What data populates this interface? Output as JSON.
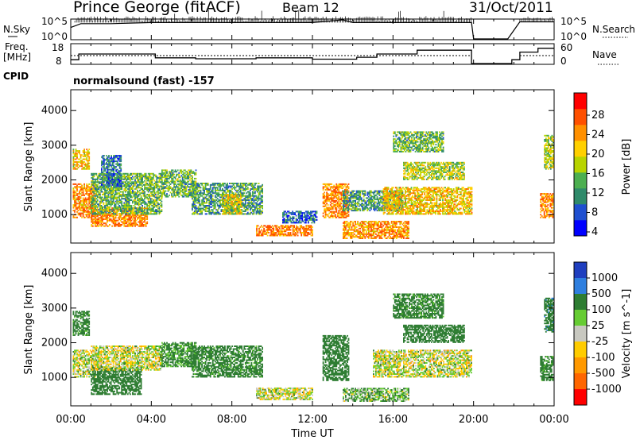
{
  "header": {
    "title": "Prince George (fitACF)",
    "beam": "Beam 12",
    "date": "31/Oct/2011"
  },
  "top_panels": {
    "nsky_label": "N.Sky",
    "nsearch_label": "N.Search",
    "freq_label_line1": "Freq.",
    "freq_label_line2": "[MHz]",
    "nave_label": "Nave",
    "cpid_label": "CPID",
    "cpid_value": "normalsound (fast) -157",
    "nsky_ticks": [
      "10^5",
      "10^0"
    ],
    "nsearch_ticks": [
      "10^5",
      "10^0"
    ],
    "freq_ticks": [
      "18",
      "8"
    ],
    "nave_ticks": [
      "60",
      "0"
    ]
  },
  "power_scale": {
    "title": "Power [dB]",
    "ticks": [
      "28",
      "24",
      "20",
      "16",
      "12",
      "8",
      "4"
    ],
    "colors": [
      "#0000ff",
      "#1f4fd0",
      "#2f8a6a",
      "#4caf50",
      "#b8d400",
      "#ffd000",
      "#ff9000",
      "#ff5000",
      "#ff0000"
    ]
  },
  "velocity_scale": {
    "title": "Velocity [m s^-1]",
    "ticks": [
      "1000",
      "500",
      "100",
      "25",
      "-25",
      "-100",
      "-500",
      "-1000"
    ],
    "colors": [
      "#1f3fbf",
      "#2f7fdf",
      "#2e7d32",
      "#66cc33",
      "#c8c8c0",
      "#ffcc00",
      "#ff9900",
      "#ff6600",
      "#ff0000"
    ]
  },
  "chart_data": [
    {
      "type": "line",
      "title": "",
      "series": [
        {
          "name": "N.Sky",
          "x": [
            0,
            0.5,
            2,
            4,
            6,
            8,
            10,
            12,
            13.5,
            14,
            16,
            18,
            19.9,
            20,
            21.7,
            22.3,
            24
          ],
          "y": [
            1000.0,
            10000.0,
            10000.0,
            20000.0,
            20000.0,
            20000.0,
            20000.0,
            20000.0,
            100000.0,
            20000.0,
            20000.0,
            20000.0,
            20000.0,
            1,
            1,
            30000.0,
            30000.0
          ]
        }
      ],
      "ylim": [
        "10^0",
        "10^5"
      ],
      "xlim": [
        0,
        24
      ]
    },
    {
      "type": "line",
      "series": [
        {
          "name": "Freq.",
          "x": [
            0,
            0.4,
            0.4,
            4.2,
            4.2,
            6.2,
            6.2,
            9.2,
            9.2,
            12,
            12,
            14.2,
            14.2,
            15.2,
            15.2,
            17.2,
            17.2,
            19.9,
            19.9,
            21.9,
            21.9,
            22.3,
            22.3,
            23.2,
            23.2,
            24
          ],
          "y": [
            10,
            10,
            13,
            13,
            11,
            11,
            10.5,
            10.5,
            11,
            11,
            10.3,
            10.3,
            11.3,
            11.3,
            13,
            13,
            15,
            15,
            8,
            8,
            10,
            10,
            14,
            14,
            16,
            16
          ]
        },
        {
          "name": "Nave",
          "x": [
            0,
            19.9,
            21.9,
            24
          ],
          "y": [
            25,
            25,
            0,
            25
          ]
        }
      ],
      "ylim": [
        8,
        18
      ],
      "xlim": [
        0,
        24
      ]
    },
    {
      "type": "heatmap",
      "title": "",
      "xlabel": "",
      "ylabel": "Slant Range [km]",
      "x_ticks": [
        "00:00",
        "04:00",
        "08:00",
        "12:00",
        "16:00",
        "20:00",
        "00:00"
      ],
      "y_ticks": [
        "1000",
        "2000",
        "3000",
        "4000"
      ],
      "xlim": [
        0,
        24
      ],
      "ylim": [
        180,
        4600
      ],
      "colorbar": "Power [dB]",
      "regions": [
        {
          "t0": 0.1,
          "t1": 1.2,
          "r0": 900,
          "r1": 1900,
          "v": 26
        },
        {
          "t0": 0.1,
          "t1": 0.9,
          "r0": 2300,
          "r1": 2900,
          "v": 22
        },
        {
          "t0": 1.0,
          "t1": 3.8,
          "r0": 650,
          "r1": 1200,
          "v": 27
        },
        {
          "t0": 1.0,
          "t1": 4.5,
          "r0": 1000,
          "r1": 2200,
          "v": 14
        },
        {
          "t0": 1.5,
          "t1": 2.5,
          "r0": 1800,
          "r1": 2700,
          "v": 9
        },
        {
          "t0": 4.5,
          "t1": 6.2,
          "r0": 1500,
          "r1": 2300,
          "v": 14
        },
        {
          "t0": 6.0,
          "t1": 9.5,
          "r0": 1000,
          "r1": 1900,
          "v": 12
        },
        {
          "t0": 7.5,
          "t1": 8.5,
          "r0": 1000,
          "r1": 1600,
          "v": 20
        },
        {
          "t0": 9.2,
          "t1": 12.0,
          "r0": 380,
          "r1": 700,
          "v": 28
        },
        {
          "t0": 10.5,
          "t1": 12.2,
          "r0": 750,
          "r1": 1100,
          "v": 8
        },
        {
          "t0": 12.5,
          "t1": 13.8,
          "r0": 900,
          "r1": 1900,
          "v": 27
        },
        {
          "t0": 13.5,
          "t1": 16.8,
          "r0": 300,
          "r1": 800,
          "v": 26
        },
        {
          "t0": 13.5,
          "t1": 16.5,
          "r0": 1100,
          "r1": 1700,
          "v": 12
        },
        {
          "t0": 15.5,
          "t1": 19.9,
          "r0": 1000,
          "r1": 1800,
          "v": 22
        },
        {
          "t0": 16.5,
          "t1": 19.5,
          "r0": 2000,
          "r1": 2500,
          "v": 18
        },
        {
          "t0": 16.0,
          "t1": 18.5,
          "r0": 2800,
          "r1": 3400,
          "v": 14
        },
        {
          "t0": 23.3,
          "t1": 23.9,
          "r0": 900,
          "r1": 1600,
          "v": 27
        },
        {
          "t0": 23.5,
          "t1": 23.95,
          "r0": 2300,
          "r1": 3300,
          "v": 18
        }
      ]
    },
    {
      "type": "heatmap",
      "title": "",
      "xlabel": "Time UT",
      "ylabel": "Slant Range [km]",
      "x_ticks": [
        "00:00",
        "04:00",
        "08:00",
        "12:00",
        "16:00",
        "20:00",
        "00:00"
      ],
      "y_ticks": [
        "1000",
        "2000",
        "3000",
        "4000"
      ],
      "xlim": [
        0,
        24
      ],
      "ylim": [
        180,
        4600
      ],
      "colorbar": "Velocity [m s^-1]",
      "regions": [
        {
          "t0": 0.1,
          "t1": 1.2,
          "r0": 1000,
          "r1": 1800,
          "v": 0
        },
        {
          "t0": 0.1,
          "t1": 0.9,
          "r0": 2200,
          "r1": 2900,
          "v": -200
        },
        {
          "t0": 1.0,
          "t1": 3.5,
          "r0": 500,
          "r1": 1300,
          "v": -300
        },
        {
          "t0": 1.0,
          "t1": 4.5,
          "r0": 1200,
          "r1": 1900,
          "v": 0
        },
        {
          "t0": 4.5,
          "t1": 6.2,
          "r0": 1300,
          "r1": 2000,
          "v": -150
        },
        {
          "t0": 6.0,
          "t1": 9.5,
          "r0": 1000,
          "r1": 1900,
          "v": -200
        },
        {
          "t0": 9.2,
          "t1": 12.0,
          "r0": 350,
          "r1": 700,
          "v": 0
        },
        {
          "t0": 12.5,
          "t1": 13.8,
          "r0": 900,
          "r1": 2200,
          "v": -300
        },
        {
          "t0": 13.5,
          "t1": 16.8,
          "r0": 300,
          "r1": 700,
          "v": -80
        },
        {
          "t0": 15.0,
          "t1": 19.9,
          "r0": 1000,
          "r1": 1800,
          "v": 0
        },
        {
          "t0": 16.5,
          "t1": 19.5,
          "r0": 2000,
          "r1": 2500,
          "v": -300
        },
        {
          "t0": 16.0,
          "t1": 18.5,
          "r0": 2700,
          "r1": 3400,
          "v": -200
        },
        {
          "t0": 23.3,
          "t1": 23.9,
          "r0": 900,
          "r1": 1600,
          "v": -200
        },
        {
          "t0": 23.5,
          "t1": 23.95,
          "r0": 2300,
          "r1": 3300,
          "v": -400
        }
      ]
    }
  ]
}
